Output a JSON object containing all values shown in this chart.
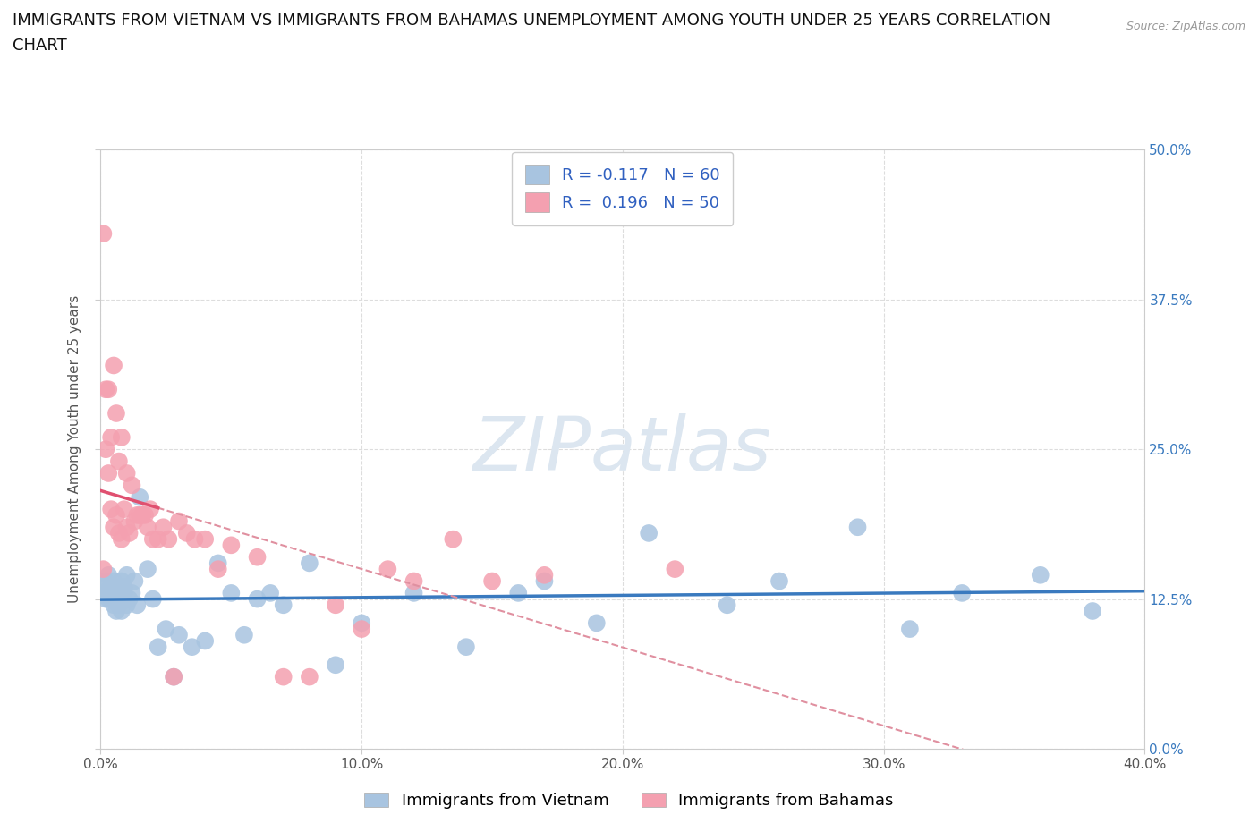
{
  "title_line1": "IMMIGRANTS FROM VIETNAM VS IMMIGRANTS FROM BAHAMAS UNEMPLOYMENT AMONG YOUTH UNDER 25 YEARS CORRELATION",
  "title_line2": "CHART",
  "source_text": "Source: ZipAtlas.com",
  "ylabel": "Unemployment Among Youth under 25 years",
  "watermark": "ZIPatlas",
  "xlim": [
    0.0,
    0.4
  ],
  "ylim": [
    0.0,
    0.5
  ],
  "xticks": [
    0.0,
    0.1,
    0.2,
    0.3,
    0.4
  ],
  "xticklabels": [
    "0.0%",
    "10.0%",
    "20.0%",
    "30.0%",
    "40.0%"
  ],
  "yticks": [
    0.0,
    0.125,
    0.25,
    0.375,
    0.5
  ],
  "yticklabels": [
    "0.0%",
    "12.5%",
    "25.0%",
    "37.5%",
    "50.0%"
  ],
  "vietnam_color": "#a8c4e0",
  "bahamas_color": "#f4a0b0",
  "trendline_vietnam_color": "#3a7abf",
  "trendline_bahamas_solid_color": "#e05070",
  "trendline_bahamas_dashed_color": "#e090a0",
  "legend_vietnam_label": "Immigrants from Vietnam",
  "legend_bahamas_label": "Immigrants from Bahamas",
  "r_vietnam": -0.117,
  "n_vietnam": 60,
  "r_bahamas": 0.196,
  "n_bahamas": 50,
  "vietnam_x": [
    0.001,
    0.001,
    0.002,
    0.002,
    0.003,
    0.003,
    0.003,
    0.004,
    0.004,
    0.004,
    0.005,
    0.005,
    0.005,
    0.006,
    0.006,
    0.006,
    0.007,
    0.007,
    0.008,
    0.008,
    0.008,
    0.009,
    0.009,
    0.01,
    0.01,
    0.011,
    0.012,
    0.013,
    0.014,
    0.015,
    0.018,
    0.02,
    0.022,
    0.025,
    0.028,
    0.03,
    0.035,
    0.04,
    0.045,
    0.05,
    0.055,
    0.06,
    0.065,
    0.07,
    0.08,
    0.09,
    0.1,
    0.12,
    0.14,
    0.16,
    0.17,
    0.19,
    0.21,
    0.24,
    0.26,
    0.29,
    0.31,
    0.33,
    0.36,
    0.38
  ],
  "vietnam_y": [
    0.135,
    0.13,
    0.14,
    0.125,
    0.13,
    0.145,
    0.125,
    0.135,
    0.125,
    0.13,
    0.13,
    0.14,
    0.12,
    0.125,
    0.135,
    0.115,
    0.13,
    0.12,
    0.14,
    0.125,
    0.115,
    0.13,
    0.135,
    0.12,
    0.145,
    0.125,
    0.13,
    0.14,
    0.12,
    0.21,
    0.15,
    0.125,
    0.085,
    0.1,
    0.06,
    0.095,
    0.085,
    0.09,
    0.155,
    0.13,
    0.095,
    0.125,
    0.13,
    0.12,
    0.155,
    0.07,
    0.105,
    0.13,
    0.085,
    0.13,
    0.14,
    0.105,
    0.18,
    0.12,
    0.14,
    0.185,
    0.1,
    0.13,
    0.145,
    0.115
  ],
  "bahamas_x": [
    0.001,
    0.001,
    0.002,
    0.002,
    0.003,
    0.003,
    0.004,
    0.004,
    0.005,
    0.005,
    0.006,
    0.006,
    0.007,
    0.007,
    0.008,
    0.008,
    0.009,
    0.01,
    0.01,
    0.011,
    0.012,
    0.013,
    0.014,
    0.015,
    0.016,
    0.017,
    0.018,
    0.019,
    0.02,
    0.022,
    0.024,
    0.026,
    0.028,
    0.03,
    0.033,
    0.036,
    0.04,
    0.045,
    0.05,
    0.06,
    0.07,
    0.08,
    0.09,
    0.1,
    0.11,
    0.12,
    0.135,
    0.15,
    0.17,
    0.22
  ],
  "bahamas_y": [
    0.43,
    0.15,
    0.3,
    0.25,
    0.23,
    0.3,
    0.26,
    0.2,
    0.32,
    0.185,
    0.28,
    0.195,
    0.18,
    0.24,
    0.26,
    0.175,
    0.2,
    0.185,
    0.23,
    0.18,
    0.22,
    0.19,
    0.195,
    0.195,
    0.195,
    0.195,
    0.185,
    0.2,
    0.175,
    0.175,
    0.185,
    0.175,
    0.06,
    0.19,
    0.18,
    0.175,
    0.175,
    0.15,
    0.17,
    0.16,
    0.06,
    0.06,
    0.12,
    0.1,
    0.15,
    0.14,
    0.175,
    0.14,
    0.145,
    0.15
  ],
  "background_color": "#ffffff",
  "grid_color": "#dddddd",
  "spine_color": "#cccccc",
  "tick_color": "#555555",
  "ytick_label_color": "#3a7abf",
  "title_fontsize": 13,
  "ylabel_fontsize": 11,
  "tick_fontsize": 11,
  "legend_fontsize": 13,
  "watermark_color": "#dce6f0",
  "watermark_fontsize": 60
}
